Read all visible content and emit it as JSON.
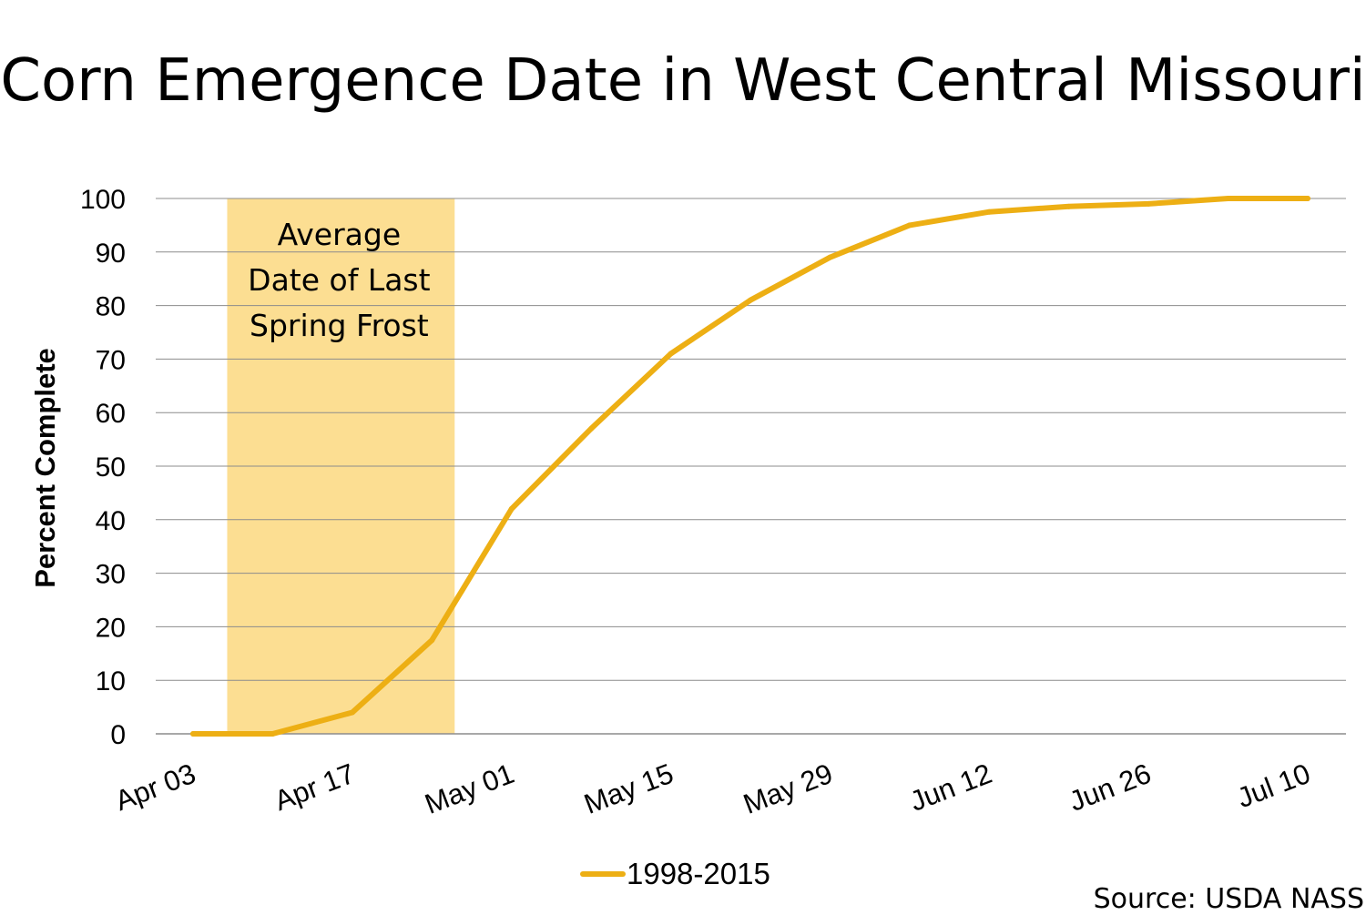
{
  "title": "Corn Emergence Date in West Central Missouri",
  "source": "Source: USDA NASS",
  "frost_band": {
    "lines": [
      "Average",
      "Date of Last",
      "Spring Frost"
    ],
    "start": "Apr 06",
    "end": "Apr 26",
    "color": "#FCDE92"
  },
  "chart_data": {
    "type": "line",
    "title": "Corn Emergence Date in West Central Missouri",
    "xlabel": "",
    "ylabel": "Percent Complete",
    "ylim": [
      0,
      100
    ],
    "yticks": [
      0,
      10,
      20,
      30,
      40,
      50,
      60,
      70,
      80,
      90,
      100
    ],
    "xlim": [
      "Apr 03",
      "Jul 10"
    ],
    "xticks": [
      "Apr 03",
      "Apr 17",
      "May 01",
      "May 15",
      "May 29",
      "Jun 12",
      "Jun 26",
      "Jul 10"
    ],
    "grid": true,
    "legend": "bottom",
    "x": [
      "Apr 03",
      "Apr 10",
      "Apr 17",
      "Apr 24",
      "May 01",
      "May 08",
      "May 15",
      "May 22",
      "May 29",
      "Jun 05",
      "Jun 12",
      "Jun 19",
      "Jun 26",
      "Jul 03",
      "Jul 10"
    ],
    "series": [
      {
        "name": "1998-2015",
        "color": "#EDAF14",
        "values": [
          0,
          0,
          4,
          17.5,
          42,
          57,
          71,
          81,
          89,
          95,
          97.5,
          98.5,
          99,
          100,
          100
        ]
      }
    ]
  }
}
